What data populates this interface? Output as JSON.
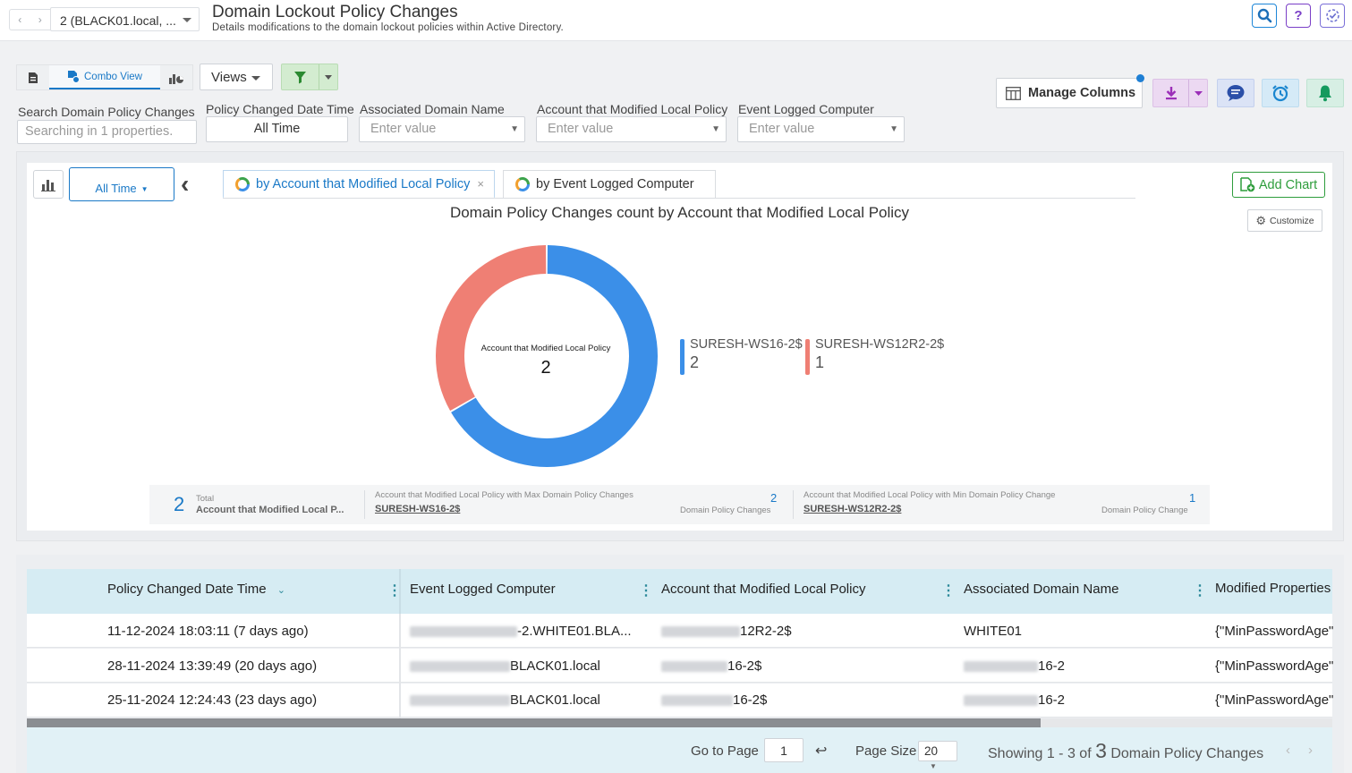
{
  "header": {
    "domain_selector": "2 (BLACK01.local, ...",
    "title": "Domain Lockout Policy Changes",
    "subtitle": "Details modifications to the domain lockout policies within Active Directory."
  },
  "toolbar": {
    "combo_view_label": "Combo View",
    "views_label": "Views",
    "manage_columns_label": "Manage Columns"
  },
  "filters": {
    "search": {
      "label": "Search Domain Policy Changes",
      "placeholder": "Searching in 1 properties."
    },
    "date": {
      "label": "Policy Changed Date Time",
      "value": "All Time"
    },
    "domain": {
      "label": "Associated Domain Name",
      "placeholder": "Enter value"
    },
    "account": {
      "label": "Account that Modified Local Policy",
      "placeholder": "Enter value"
    },
    "computer": {
      "label": "Event Logged Computer",
      "placeholder": "Enter value"
    }
  },
  "chart_panel": {
    "period_label": "All Time",
    "tabs": [
      {
        "label": "by Account that Modified Local Policy"
      },
      {
        "label": "by Event Logged Computer"
      }
    ],
    "add_chart_label": "Add Chart",
    "customize_label": "Customize",
    "center_label": "Account that Modified Local Policy",
    "center_value": "2",
    "summary": {
      "total_value": "2",
      "total_small": "Total",
      "total_label": "Account that Modified Local P...",
      "max_title": "Account that Modified Local Policy with Max Domain Policy Changes",
      "max_name": "SURESH-WS16-2$",
      "max_value": "2",
      "max_unit": "Domain Policy Changes",
      "min_title": "Account that Modified Local Policy with Min Domain Policy Change",
      "min_name": "SURESH-WS12R2-2$",
      "min_value": "1",
      "min_unit": "Domain Policy Change"
    }
  },
  "chart_data": {
    "type": "pie",
    "title": "Domain Policy Changes count by Account that Modified Local Policy",
    "categories": [
      "SURESH-WS16-2$",
      "SURESH-WS12R2-2$"
    ],
    "values": [
      2,
      1
    ],
    "value_labels": [
      "2",
      "1"
    ],
    "colors": [
      "#3b8fe8",
      "#ef7f74"
    ],
    "donut": true,
    "legend": "right"
  },
  "table": {
    "columns": [
      "Policy Changed Date Time",
      "Event Logged Computer",
      "Account that Modified Local Policy",
      "Associated Domain Name",
      "Modified Properties"
    ],
    "rows": [
      {
        "date": "11-12-2024 18:03:11 (7 days ago)",
        "computer": "-2.WHITE01.BLA...",
        "account": "12R2-2$",
        "domain": "WHITE01",
        "props": "{\"MinPasswordAge\""
      },
      {
        "date": "28-11-2024 13:39:49 (20 days ago)",
        "computer": "BLACK01.local",
        "account": "16-2$",
        "domain": "16-2",
        "props": "{\"MinPasswordAge\""
      },
      {
        "date": "25-11-2024 12:24:43 (23 days ago)",
        "computer": "BLACK01.local",
        "account": "16-2$",
        "domain": "16-2",
        "props": "{\"MinPasswordAge\""
      }
    ]
  },
  "pagination": {
    "goto_label": "Go to Page",
    "page": "1",
    "size_label": "Page Size",
    "size": "20",
    "showing_prefix": "Showing",
    "range": "1 - 3",
    "of": "of",
    "total": "3",
    "noun": "Domain Policy Changes"
  }
}
